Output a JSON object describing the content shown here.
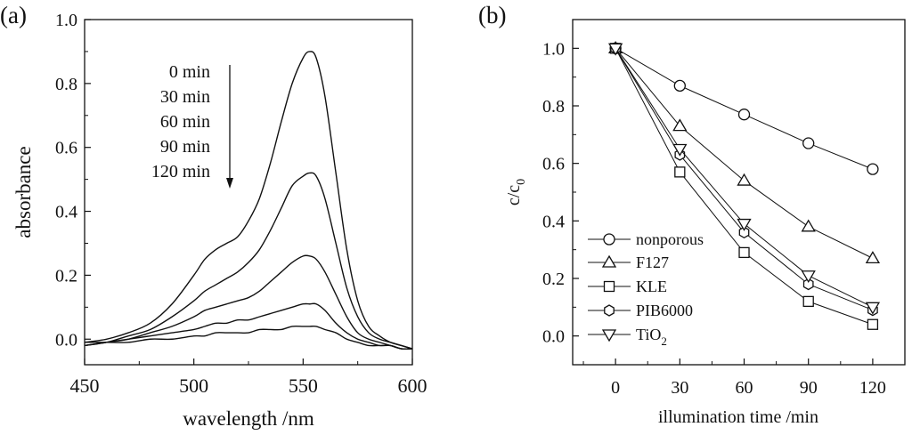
{
  "chart_data": [
    {
      "panel_label": "(a)",
      "type": "line",
      "xlabel": "wavelength /nm",
      "ylabel": "absorbance",
      "xlim": [
        450,
        600
      ],
      "ylim": [
        -0.08,
        1.0
      ],
      "xticks": [
        "450",
        "500",
        "550",
        "600"
      ],
      "yticks": [
        "0.0",
        "0.2",
        "0.4",
        "0.6",
        "0.8",
        "1.0"
      ],
      "legend": [
        "0 min",
        "30 min",
        "60 min",
        "90 min",
        "120 min"
      ],
      "arrow_direction": "down",
      "grid": false,
      "x": [
        450,
        460,
        470,
        480,
        490,
        500,
        505,
        510,
        515,
        520,
        525,
        530,
        535,
        540,
        545,
        550,
        553,
        556,
        560,
        565,
        570,
        575,
        580,
        585,
        590,
        595,
        600
      ],
      "series": [
        {
          "name": "0 min",
          "values": [
            -0.01,
            0.0,
            0.02,
            0.05,
            0.11,
            0.2,
            0.25,
            0.28,
            0.3,
            0.32,
            0.37,
            0.44,
            0.55,
            0.68,
            0.8,
            0.88,
            0.9,
            0.88,
            0.76,
            0.52,
            0.28,
            0.12,
            0.04,
            0.01,
            -0.01,
            -0.02,
            -0.03
          ]
        },
        {
          "name": "30 min",
          "values": [
            -0.02,
            -0.01,
            0.01,
            0.03,
            0.07,
            0.12,
            0.15,
            0.17,
            0.19,
            0.21,
            0.24,
            0.28,
            0.34,
            0.41,
            0.48,
            0.51,
            0.52,
            0.51,
            0.44,
            0.3,
            0.16,
            0.07,
            0.02,
            0.0,
            -0.01,
            -0.02,
            -0.03
          ]
        },
        {
          "name": "60 min",
          "values": [
            -0.02,
            -0.01,
            0.0,
            0.02,
            0.04,
            0.07,
            0.09,
            0.1,
            0.11,
            0.12,
            0.13,
            0.15,
            0.18,
            0.21,
            0.24,
            0.26,
            0.26,
            0.25,
            0.21,
            0.14,
            0.07,
            0.02,
            0.0,
            -0.01,
            -0.02,
            -0.03,
            -0.03
          ]
        },
        {
          "name": "90 min",
          "values": [
            -0.02,
            -0.01,
            0.0,
            0.01,
            0.02,
            0.03,
            0.04,
            0.05,
            0.05,
            0.06,
            0.06,
            0.07,
            0.08,
            0.09,
            0.1,
            0.11,
            0.11,
            0.11,
            0.09,
            0.05,
            0.02,
            0.0,
            -0.01,
            -0.02,
            -0.02,
            -0.03,
            -0.03
          ]
        },
        {
          "name": "120 min",
          "values": [
            -0.01,
            -0.01,
            -0.01,
            0.0,
            0.0,
            0.01,
            0.01,
            0.02,
            0.02,
            0.02,
            0.02,
            0.03,
            0.03,
            0.03,
            0.04,
            0.04,
            0.04,
            0.04,
            0.03,
            0.02,
            0.0,
            -0.01,
            -0.02,
            -0.02,
            -0.02,
            -0.03,
            -0.03
          ]
        }
      ]
    },
    {
      "panel_label": "(b)",
      "type": "line",
      "xlabel": "illumination time /min",
      "ylabel_base": "c/c",
      "ylabel_sub": "0",
      "xlim": [
        -20,
        135
      ],
      "ylim": [
        -0.1,
        1.1
      ],
      "xticks": [
        "0",
        "30",
        "60",
        "90",
        "120"
      ],
      "yticks": [
        "0.0",
        "0.2",
        "0.4",
        "0.6",
        "0.8",
        "1.0"
      ],
      "legend_position": "bottom-left",
      "grid": false,
      "x": [
        0,
        30,
        60,
        90,
        120
      ],
      "series": [
        {
          "name": "nonporous",
          "marker": "circle",
          "values": [
            1.0,
            0.87,
            0.77,
            0.67,
            0.58
          ]
        },
        {
          "name": "F127",
          "marker": "triangle-up",
          "values": [
            1.0,
            0.73,
            0.54,
            0.38,
            0.27
          ]
        },
        {
          "name": "KLE",
          "marker": "square",
          "values": [
            1.0,
            0.57,
            0.29,
            0.12,
            0.04
          ]
        },
        {
          "name": "PIB6000",
          "marker": "hexagon",
          "values": [
            1.0,
            0.63,
            0.36,
            0.18,
            0.09
          ]
        },
        {
          "name": "TiO",
          "name_sub": "2",
          "marker": "triangle-down",
          "values": [
            1.0,
            0.65,
            0.39,
            0.21,
            0.1
          ]
        }
      ]
    }
  ]
}
